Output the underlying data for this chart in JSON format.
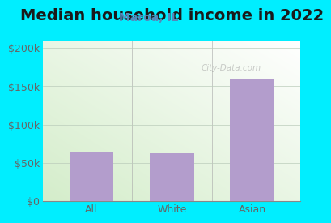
{
  "title": "Median household income in 2022",
  "subtitle": "Maroa, IL",
  "categories": [
    "All",
    "White",
    "Asian"
  ],
  "values": [
    65000,
    62000,
    160000
  ],
  "bar_color": "#b39dcc",
  "background_outer": "#00eeff",
  "yticks": [
    0,
    50000,
    100000,
    150000,
    200000
  ],
  "ytick_labels": [
    "$0",
    "$50k",
    "$100k",
    "$150k",
    "$200k"
  ],
  "ylim": [
    0,
    210000
  ],
  "title_fontsize": 14,
  "subtitle_fontsize": 10,
  "tick_fontsize": 9,
  "title_color": "#1a1a1a",
  "subtitle_color": "#5588bb",
  "tick_color": "#666666",
  "watermark": "City-Data.com",
  "bar_width": 0.55,
  "grad_color_bottom_left": "#d4edca",
  "grad_color_top_right": "#f0f8f0",
  "divider_color": "#aaaaaa"
}
